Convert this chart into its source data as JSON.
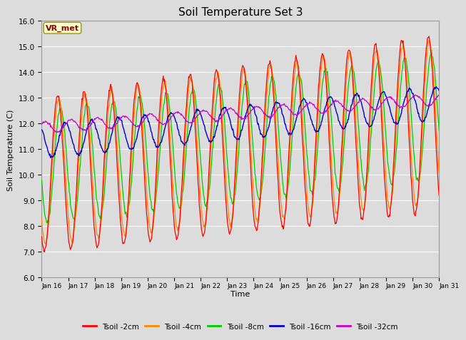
{
  "title": "Soil Temperature Set 3",
  "xlabel": "Time",
  "ylabel": "Soil Temperature (C)",
  "ylim": [
    6.0,
    16.0
  ],
  "yticks": [
    6.0,
    7.0,
    8.0,
    9.0,
    10.0,
    11.0,
    12.0,
    13.0,
    14.0,
    15.0,
    16.0
  ],
  "xtick_labels": [
    "Jan 16",
    "Jan 17",
    "Jan 18",
    "Jan 19",
    "Jan 20",
    "Jan 21",
    "Jan 22",
    "Jan 23",
    "Jan 24",
    "Jan 25",
    "Jan 26",
    "Jan 27",
    "Jan 28",
    "Jan 29",
    "Jan 30",
    "Jan 31"
  ],
  "legend_labels": [
    "Tsoil -2cm",
    "Tsoil -4cm",
    "Tsoil -8cm",
    "Tsoil -16cm",
    "Tsoil -32cm"
  ],
  "colors": [
    "#ff0000",
    "#ff8800",
    "#00cc00",
    "#0000cc",
    "#cc00cc"
  ],
  "annotation_text": "VR_met",
  "annotation_color": "#8b0000",
  "annotation_bg": "#ffffcc",
  "background_color": "#dcdcdc",
  "plot_bg": "#dcdcdc",
  "grid_color": "#ffffff",
  "n_points": 720
}
